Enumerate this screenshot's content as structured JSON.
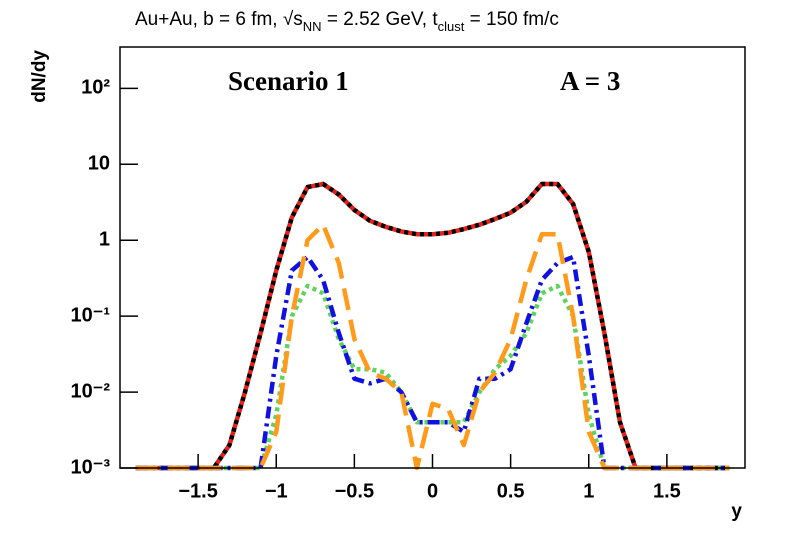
{
  "chart_data": {
    "type": "line",
    "title": [
      {
        "text": "Au+Au, b = 6 fm, √s"
      },
      {
        "text": "NN",
        "sub": true
      },
      {
        "text": " = 2.52 GeV, t"
      },
      {
        "text": "clust",
        "sub": true
      },
      {
        "text": " = 150 fm/c"
      }
    ],
    "annotations": [
      "Scenario 1",
      "A = 3"
    ],
    "xlabel": "y",
    "ylabel": "dN/dy",
    "log_y": true,
    "xlim": [
      -2,
      2
    ],
    "xticks": [
      {
        "value": -1.5,
        "label": "−1.5"
      },
      {
        "value": -1,
        "label": "−1"
      },
      {
        "value": -0.5,
        "label": "−0.5"
      },
      0,
      0.5,
      1,
      1.5
    ],
    "ylim": [
      0.001,
      350
    ],
    "yticks": [
      {
        "value": 0.001,
        "label": "10⁻³"
      },
      {
        "value": 0.01,
        "label": "10⁻²"
      },
      {
        "value": 0.1,
        "label": "10⁻¹"
      },
      1,
      10,
      {
        "value": 100,
        "label": "10²"
      }
    ],
    "x": [
      -1.9,
      -1.8,
      -1.7,
      -1.6,
      -1.5,
      -1.4,
      -1.3,
      -1.2,
      -1.1,
      -1.0,
      -0.9,
      -0.8,
      -0.7,
      -0.6,
      -0.5,
      -0.4,
      -0.3,
      -0.2,
      -0.1,
      0,
      0.1,
      0.2,
      0.3,
      0.4,
      0.5,
      0.6,
      0.7,
      0.8,
      0.9,
      1.0,
      1.1,
      1.2,
      1.3,
      1.4,
      1.5,
      1.6,
      1.7,
      1.8,
      1.9
    ],
    "series": [
      {
        "color": "#e8201a",
        "dash": "solid",
        "values": [
          0.001,
          0.001,
          0.001,
          0.001,
          0.001,
          0.001,
          0.002,
          0.01,
          0.06,
          0.4,
          2,
          5,
          5.5,
          4,
          2.5,
          1.8,
          1.5,
          1.3,
          1.2,
          1.2,
          1.25,
          1.4,
          1.6,
          1.9,
          2.3,
          3.2,
          5.5,
          5.5,
          3,
          0.7,
          0.06,
          0.004,
          0.001,
          0.001,
          0.001,
          0.001,
          0.001,
          0.001,
          0.001
        ]
      },
      {
        "color": "#000000",
        "dash": "dotted",
        "values": [
          0.001,
          0.001,
          0.001,
          0.001,
          0.001,
          0.001,
          0.002,
          0.01,
          0.06,
          0.4,
          2,
          5,
          5.5,
          4,
          2.5,
          1.8,
          1.5,
          1.3,
          1.2,
          1.2,
          1.25,
          1.4,
          1.6,
          1.9,
          2.3,
          3.2,
          5.5,
          5.5,
          3,
          0.7,
          0.06,
          0.004,
          0.001,
          0.001,
          0.001,
          0.001,
          0.001,
          0.001,
          0.001
        ]
      },
      {
        "color": "#5fd35f",
        "dash": "dotted",
        "values": [
          0.001,
          0.001,
          0.001,
          0.001,
          0.001,
          0.001,
          0.001,
          0.001,
          0.001,
          0.005,
          0.1,
          0.25,
          0.2,
          0.05,
          0.02,
          0.02,
          0.018,
          0.01,
          0.004,
          0.004,
          0.004,
          0.004,
          0.01,
          0.02,
          0.03,
          0.06,
          0.2,
          0.25,
          0.1,
          0.005,
          0.001,
          0.001,
          0.001,
          0.001,
          0.001,
          0.001,
          0.001,
          0.001,
          0.001
        ]
      },
      {
        "color": "#1010e0",
        "dash": "dashdot",
        "values": [
          0.001,
          0.001,
          0.001,
          0.001,
          0.001,
          0.001,
          0.001,
          0.001,
          0.001,
          0.03,
          0.4,
          0.6,
          0.3,
          0.06,
          0.015,
          0.013,
          0.015,
          0.01,
          0.004,
          0.004,
          0.004,
          0.003,
          0.015,
          0.015,
          0.02,
          0.08,
          0.3,
          0.5,
          0.6,
          0.03,
          0.001,
          0.001,
          0.001,
          0.001,
          0.001,
          0.001,
          0.001,
          0.001,
          0.001
        ]
      },
      {
        "color": "#ff9a1a",
        "dash": "dashed",
        "values": [
          0.001,
          0.001,
          0.001,
          0.001,
          0.001,
          0.001,
          0.001,
          0.001,
          0.001,
          0.003,
          0.1,
          1,
          1.6,
          0.5,
          0.05,
          0.018,
          0.015,
          0.01,
          0.001,
          0.007,
          0.006,
          0.002,
          0.01,
          0.018,
          0.05,
          0.3,
          1.2,
          1.2,
          0.1,
          0.003,
          0.001,
          0.001,
          0.001,
          0.001,
          0.001,
          0.001,
          0.001,
          0.001,
          0.001
        ]
      }
    ]
  }
}
